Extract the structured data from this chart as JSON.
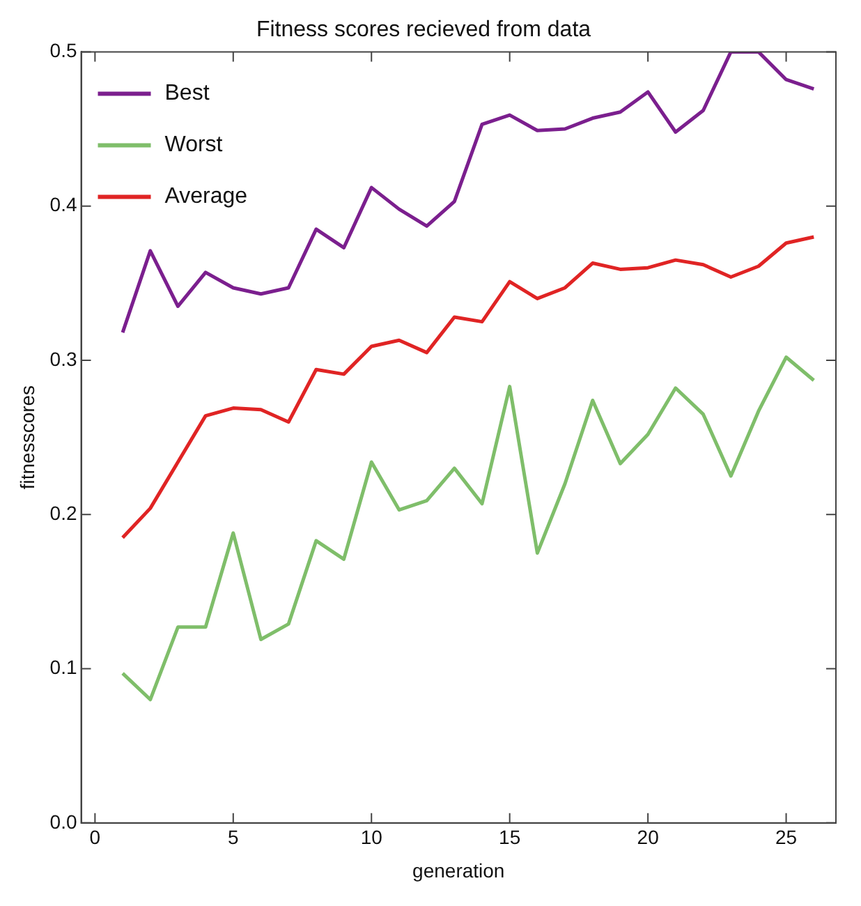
{
  "chart_data": {
    "type": "line",
    "title": "Fitness scores recieved from data",
    "xlabel": "generation",
    "ylabel": "fitnesscores",
    "x": [
      1,
      2,
      3,
      4,
      5,
      6,
      7,
      8,
      9,
      10,
      11,
      12,
      13,
      14,
      15,
      16,
      17,
      18,
      19,
      20,
      21,
      22,
      23,
      24,
      25,
      26
    ],
    "series": [
      {
        "name": "Best",
        "color": "#7b1f8e",
        "values": [
          0.318,
          0.371,
          0.335,
          0.357,
          0.347,
          0.343,
          0.347,
          0.385,
          0.373,
          0.412,
          0.398,
          0.387,
          0.403,
          0.453,
          0.459,
          0.449,
          0.45,
          0.457,
          0.461,
          0.474,
          0.448,
          0.462,
          0.5,
          0.5,
          0.482,
          0.476
        ]
      },
      {
        "name": "Worst",
        "color": "#7fbe6a",
        "values": [
          0.097,
          0.08,
          0.127,
          0.127,
          0.188,
          0.119,
          0.129,
          0.183,
          0.171,
          0.234,
          0.203,
          0.209,
          0.23,
          0.207,
          0.283,
          0.175,
          0.22,
          0.274,
          0.233,
          0.252,
          0.282,
          0.265,
          0.225,
          0.267,
          0.302,
          0.287
        ]
      },
      {
        "name": "Average",
        "color": "#e02424",
        "values": [
          0.185,
          0.204,
          0.234,
          0.264,
          0.269,
          0.268,
          0.26,
          0.294,
          0.291,
          0.309,
          0.313,
          0.305,
          0.328,
          0.325,
          0.351,
          0.34,
          0.347,
          0.363,
          0.359,
          0.36,
          0.365,
          0.362,
          0.354,
          0.361,
          0.376,
          0.38
        ]
      }
    ],
    "xlim": [
      -0.5,
      26.8
    ],
    "xticks": [
      0,
      5,
      10,
      15,
      20,
      25
    ],
    "ylim": [
      0,
      0.5
    ],
    "yticks": [
      {
        "value": 0,
        "label": "0.0"
      },
      0.1,
      0.2,
      0.3,
      0.4,
      0.5
    ],
    "grid": false,
    "legend": "top left",
    "marker": "none",
    "line_style": "solid"
  }
}
